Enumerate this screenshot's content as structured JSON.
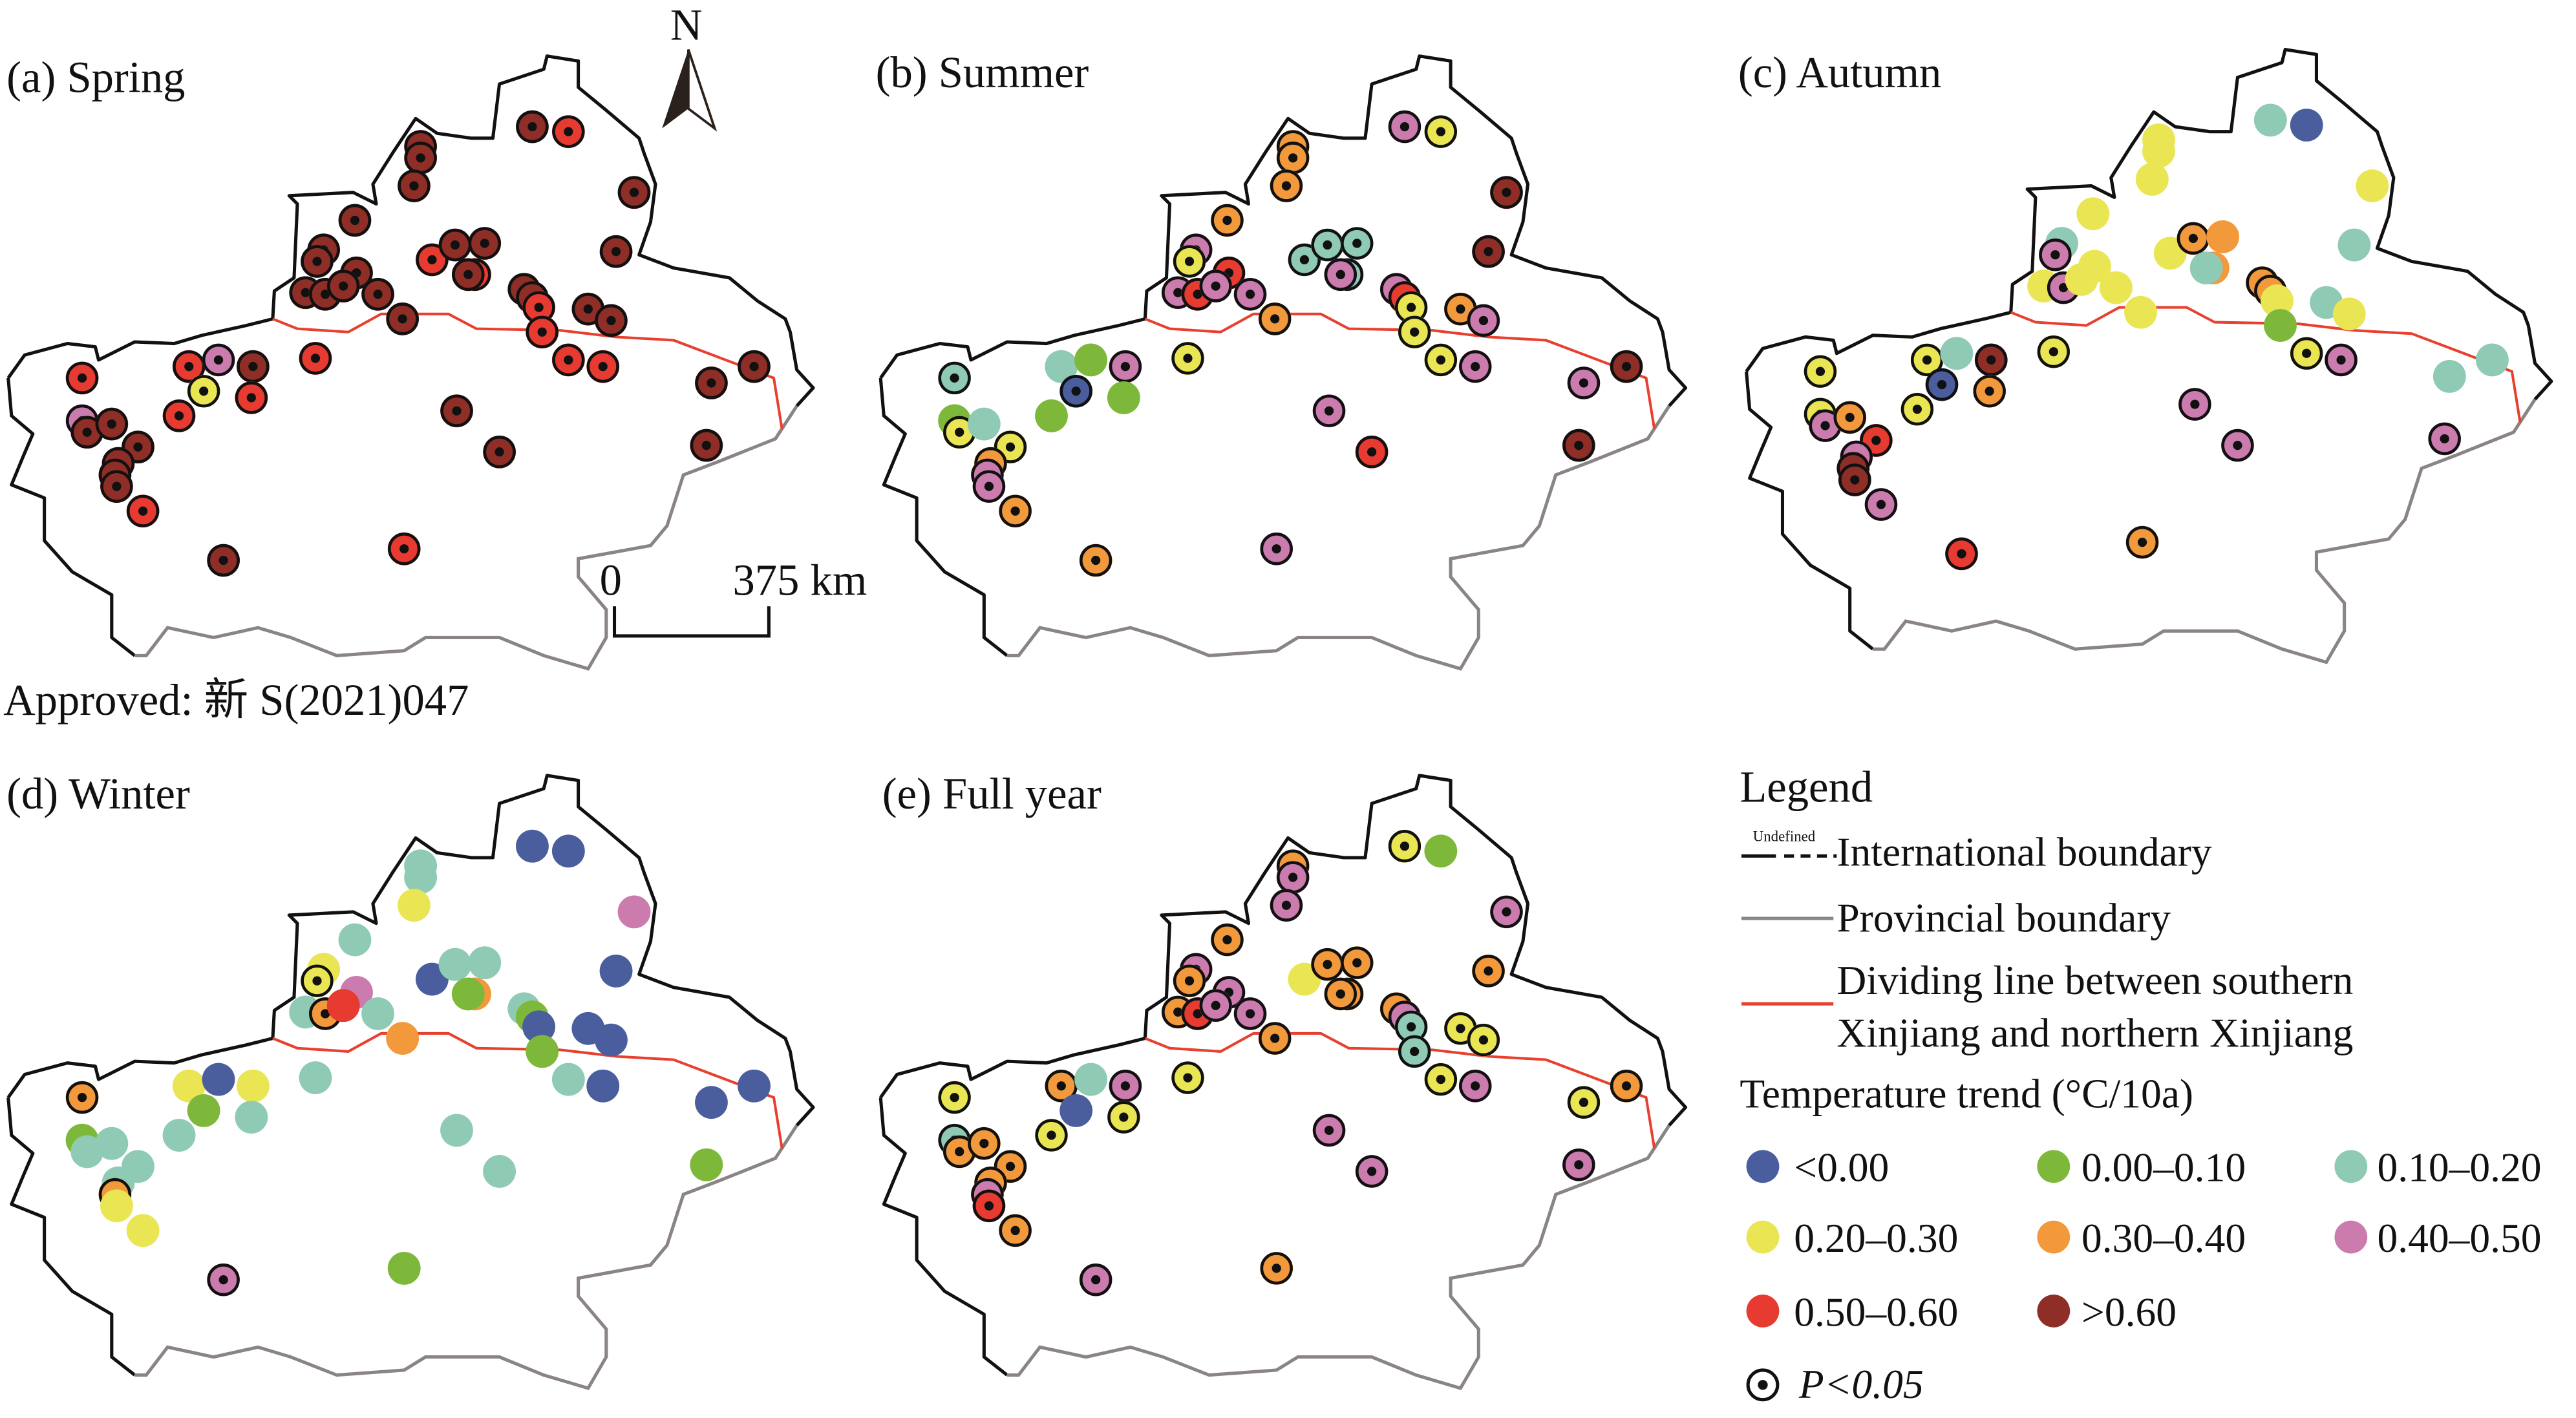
{
  "panels": [
    {
      "id": "spring",
      "title": "(a) Spring"
    },
    {
      "id": "summer",
      "title": "(b) Summer"
    },
    {
      "id": "autumn",
      "title": "(c) Autumn"
    },
    {
      "id": "winter",
      "title": "(d) Winter"
    },
    {
      "id": "fullyear",
      "title": "(e) Full year"
    }
  ],
  "north_label": "N",
  "scale": {
    "start": "0",
    "end": "375 km"
  },
  "approval": "Approved: 新 S(2021)047",
  "legend": {
    "title": "Legend",
    "undefined_label": "Undefined",
    "international": "International boundary",
    "provincial": "Provincial boundary",
    "divider_line1": "Dividing line between southern",
    "divider_line2": "Xinjiang and northern Xinjiang",
    "trend_title": "Temperature trend (°C/10a)",
    "classes": [
      {
        "label": "<0.00",
        "color": "#4a5d9c"
      },
      {
        "label": "0.00–0.10",
        "color": "#7db83a"
      },
      {
        "label": "0.10–0.20",
        "color": "#8fcab4"
      },
      {
        "label": "0.20–0.30",
        "color": "#eae553"
      },
      {
        "label": "0.30–0.40",
        "color": "#f2993c"
      },
      {
        "label": "0.40–0.50",
        "color": "#cb7bad"
      },
      {
        "label": "0.50–0.60",
        "color": "#e73a30"
      },
      {
        "label": ">0.60",
        "color": "#8e2e27"
      }
    ],
    "sig_label": "P<0.05"
  },
  "chart_data": {
    "type": "map",
    "description_units": "class index into legend.classes per station; sig 1 = P<0.05",
    "seasons": {
      "spring": {
        "class": [
          7,
          6,
          7,
          7,
          7,
          7,
          7,
          7,
          7,
          7,
          6,
          7,
          7,
          6,
          7,
          7,
          7,
          7,
          7,
          7,
          7,
          7,
          7,
          6,
          7,
          7,
          6,
          6,
          6,
          6,
          7,
          7,
          6,
          6,
          5,
          7,
          3,
          6,
          6,
          5,
          7,
          7,
          7,
          7,
          7,
          7,
          6,
          7,
          7,
          7,
          7,
          6
        ],
        "sig": [
          1,
          1,
          1,
          1,
          1,
          1,
          1,
          1,
          1,
          1,
          1,
          1,
          1,
          1,
          1,
          1,
          1,
          1,
          1,
          1,
          1,
          1,
          1,
          1,
          1,
          1,
          1,
          1,
          1,
          1,
          1,
          1,
          1,
          1,
          1,
          1,
          1,
          1,
          1,
          1,
          1,
          1,
          1,
          1,
          1,
          1,
          1,
          1,
          1,
          1,
          1,
          1
        ]
      },
      "summer": {
        "class": [
          5,
          3,
          4,
          4,
          4,
          7,
          4,
          7,
          5,
          3,
          2,
          2,
          2,
          2,
          5,
          6,
          5,
          6,
          5,
          5,
          4,
          5,
          6,
          3,
          4,
          5,
          3,
          3,
          3,
          5,
          7,
          5,
          2,
          2,
          1,
          5,
          0,
          1,
          1,
          1,
          3,
          2,
          3,
          4,
          5,
          5,
          4,
          5,
          6,
          7,
          4,
          5
        ],
        "sig": [
          1,
          1,
          1,
          1,
          1,
          1,
          1,
          1,
          1,
          1,
          1,
          1,
          1,
          1,
          1,
          1,
          1,
          1,
          1,
          1,
          1,
          1,
          1,
          1,
          1,
          1,
          1,
          1,
          1,
          1,
          1,
          1,
          1,
          0,
          0,
          1,
          1,
          0,
          0,
          0,
          1,
          0,
          1,
          1,
          1,
          1,
          1,
          1,
          1,
          1,
          1,
          1
        ]
      },
      "autumn": {
        "class": [
          2,
          0,
          3,
          3,
          3,
          3,
          3,
          2,
          2,
          5,
          3,
          4,
          4,
          4,
          2,
          3,
          3,
          5,
          3,
          3,
          3,
          4,
          4,
          3,
          2,
          3,
          1,
          3,
          3,
          5,
          2,
          2,
          3,
          3,
          2,
          7,
          0,
          4,
          3,
          3,
          5,
          4,
          6,
          5,
          7,
          7,
          5,
          5,
          5,
          5,
          6,
          4
        ],
        "sig": [
          0,
          0,
          0,
          0,
          0,
          0,
          0,
          0,
          0,
          1,
          0,
          1,
          0,
          0,
          0,
          0,
          0,
          1,
          0,
          0,
          0,
          1,
          1,
          0,
          0,
          0,
          0,
          1,
          1,
          1,
          0,
          0,
          1,
          1,
          0,
          1,
          1,
          1,
          1,
          1,
          1,
          1,
          1,
          1,
          1,
          1,
          1,
          1,
          1,
          1,
          1,
          1
        ]
      },
      "winter": {
        "class": [
          0,
          0,
          2,
          2,
          3,
          5,
          2,
          0,
          3,
          3,
          0,
          2,
          2,
          4,
          1,
          5,
          2,
          4,
          6,
          2,
          4,
          2,
          1,
          0,
          0,
          0,
          1,
          2,
          2,
          0,
          0,
          0,
          4,
          3,
          0,
          3,
          1,
          2,
          2,
          1,
          2,
          2,
          2,
          2,
          4,
          3,
          3,
          2,
          2,
          1,
          5,
          1
        ],
        "sig": [
          0,
          0,
          0,
          0,
          0,
          0,
          0,
          0,
          0,
          1,
          0,
          0,
          0,
          0,
          0,
          0,
          0,
          1,
          0,
          0,
          0,
          0,
          0,
          0,
          0,
          0,
          0,
          0,
          0,
          0,
          0,
          0,
          1,
          0,
          0,
          0,
          0,
          0,
          0,
          0,
          0,
          0,
          0,
          0,
          1,
          0,
          0,
          0,
          0,
          0,
          1,
          0
        ]
      },
      "fullyear": {
        "class": [
          3,
          1,
          4,
          5,
          5,
          5,
          4,
          4,
          5,
          4,
          3,
          4,
          4,
          4,
          4,
          5,
          4,
          6,
          5,
          5,
          4,
          4,
          5,
          2,
          3,
          3,
          2,
          3,
          3,
          5,
          4,
          3,
          3,
          4,
          2,
          5,
          0,
          3,
          3,
          2,
          4,
          4,
          4,
          4,
          5,
          6,
          4,
          5,
          5,
          5,
          5,
          4
        ],
        "sig": [
          1,
          0,
          1,
          1,
          1,
          1,
          1,
          1,
          1,
          1,
          0,
          1,
          1,
          1,
          1,
          1,
          1,
          1,
          1,
          1,
          1,
          1,
          1,
          1,
          1,
          1,
          1,
          1,
          1,
          1,
          1,
          1,
          1,
          1,
          0,
          1,
          0,
          1,
          1,
          1,
          1,
          1,
          1,
          1,
          1,
          1,
          1,
          1,
          1,
          1,
          1,
          1
        ]
      }
    }
  }
}
